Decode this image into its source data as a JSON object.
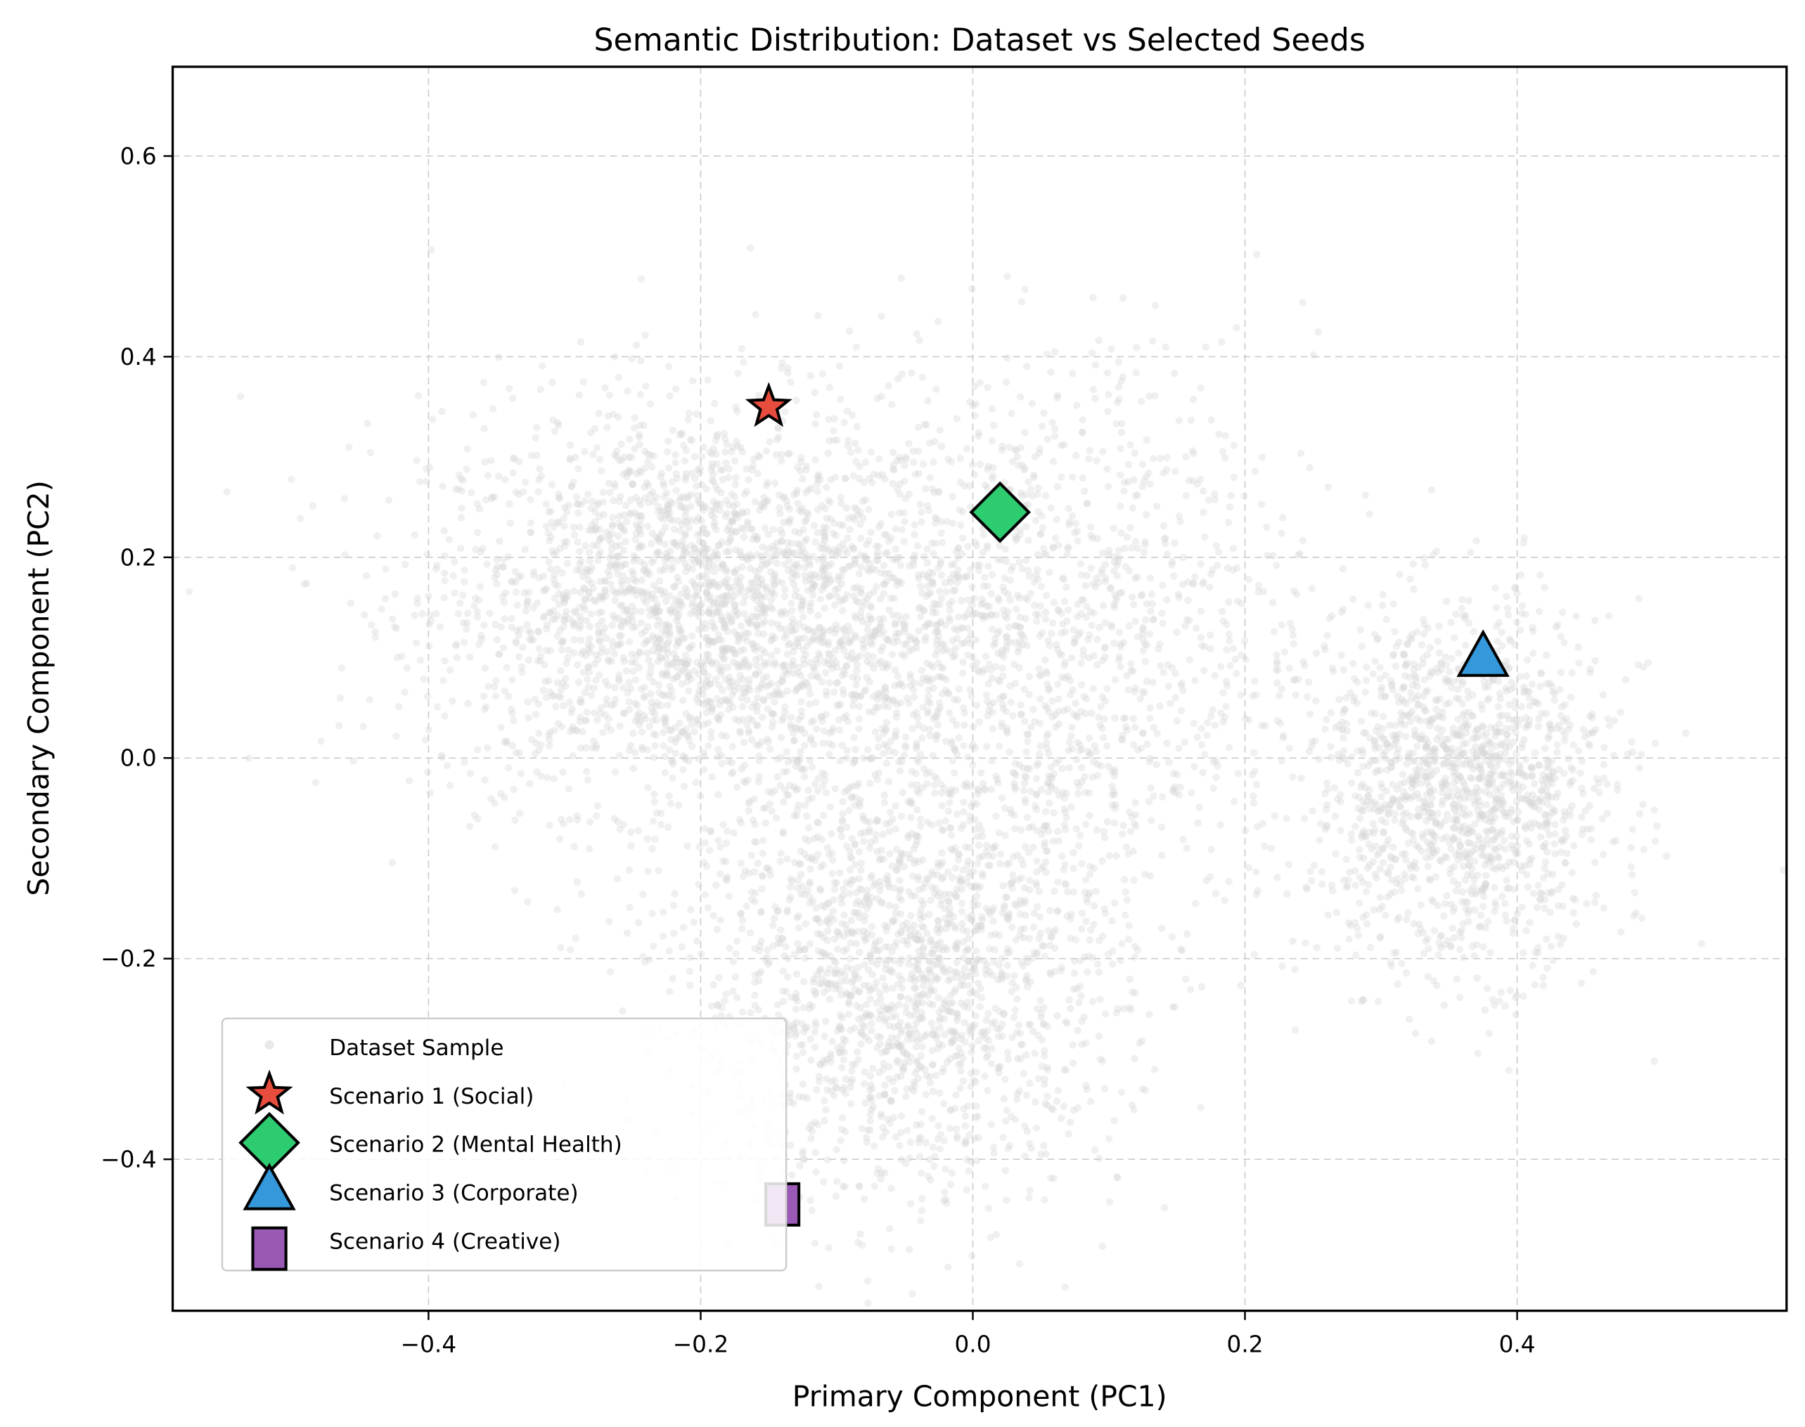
{
  "chart_data": {
    "type": "scatter",
    "title": "Semantic Distribution: Dataset vs Selected Seeds",
    "xlabel": "Primary Component (PC1)",
    "ylabel": "Secondary Component (PC2)",
    "xlim": [
      -0.588,
      0.598
    ],
    "ylim": [
      -0.551,
      0.689
    ],
    "xticks": [
      -0.4,
      -0.2,
      0.0,
      0.2,
      0.4
    ],
    "xtick_labels": [
      "−0.4",
      "−0.2",
      "0.0",
      "0.2",
      "0.4"
    ],
    "yticks": [
      -0.4,
      -0.2,
      0.0,
      0.2,
      0.4,
      0.6
    ],
    "ytick_labels": [
      "−0.4",
      "−0.2",
      "0.0",
      "0.2",
      "0.4",
      "0.6"
    ],
    "grid": true,
    "legend_position": "lower-left",
    "background_series": {
      "name": "Dataset Sample",
      "color": "#d3d3d3",
      "marker": "circle"
    },
    "series": [
      {
        "name": "Scenario 1 (Social)",
        "marker": "star",
        "color": "#e74c3c",
        "x": -0.15,
        "y": 0.35
      },
      {
        "name": "Scenario 2 (Mental Health)",
        "marker": "diamond",
        "color": "#2ecc71",
        "x": 0.02,
        "y": 0.245
      },
      {
        "name": "Scenario 3 (Corporate)",
        "marker": "triangle",
        "color": "#3498db",
        "x": 0.375,
        "y": 0.1
      },
      {
        "name": "Scenario 4 (Creative)",
        "marker": "square",
        "color": "#9b59b6",
        "x": -0.14,
        "y": -0.445
      }
    ]
  }
}
